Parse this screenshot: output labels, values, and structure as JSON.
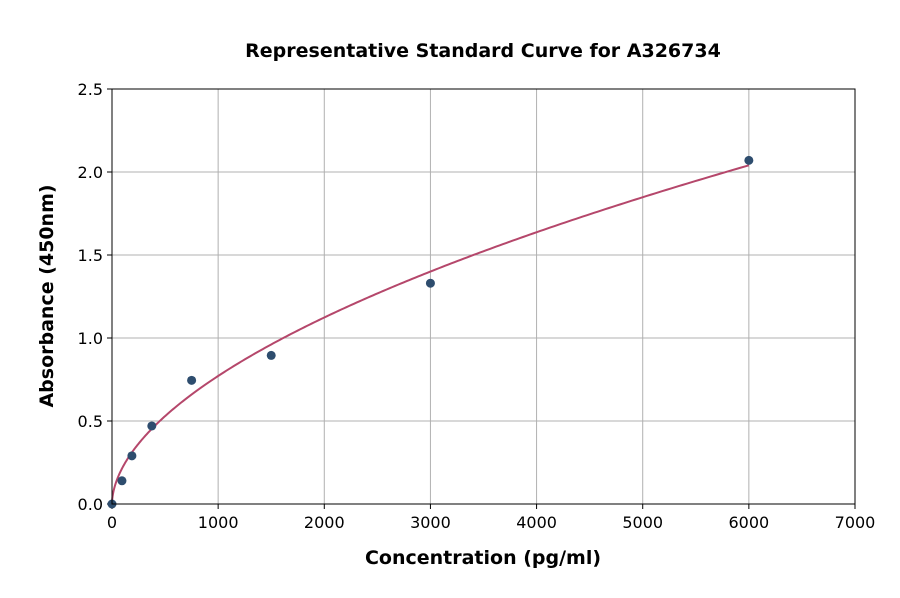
{
  "chart_data": {
    "type": "scatter",
    "title": "Representative Standard Curve for A326734",
    "xlabel": "Concentration (pg/ml)",
    "ylabel": "Absorbance (450nm)",
    "xlim": [
      0,
      7000
    ],
    "ylim": [
      0,
      2.5
    ],
    "xticks": [
      "0",
      "1000",
      "2000",
      "3000",
      "4000",
      "5000",
      "6000",
      "7000"
    ],
    "yticks": [
      "0.0",
      "0.5",
      "1.0",
      "1.5",
      "2.0",
      "2.5"
    ],
    "grid": true,
    "points": {
      "x": [
        0,
        93.75,
        187.5,
        375,
        750,
        1500,
        3000,
        6000
      ],
      "y": [
        0.0,
        0.14,
        0.29,
        0.47,
        0.745,
        0.895,
        1.33,
        2.07
      ]
    },
    "fit_curve": {
      "x_range": [
        0,
        6000
      ],
      "form": "power",
      "a": 0.01812,
      "b": 0.543
    },
    "colors": {
      "points": "#2e4d6e",
      "curve": "#b5476b",
      "grid": "#b0b0b0"
    }
  }
}
